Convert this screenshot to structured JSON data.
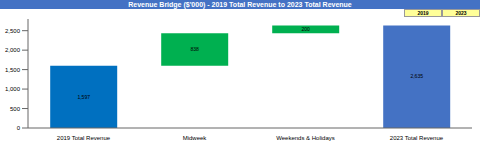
{
  "chart_data": {
    "type": "waterfall",
    "title": "Revenue Bridge ($'000) - 2019 Total Revenue to 2023 Total Revenue",
    "annotations": [
      "2019",
      "2023"
    ],
    "categories": [
      "2019 Total Revenue",
      "Midweek",
      "Weekends & Holidays",
      "2023 Total Revenue"
    ],
    "values": [
      1597,
      838,
      200,
      2635
    ],
    "value_labels": [
      "1,597",
      "838",
      "200",
      "2,635"
    ],
    "colors": [
      "#0070c0",
      "#00b050",
      "#00b050",
      "#4472c4"
    ],
    "ylim": [
      0,
      2800
    ],
    "yticks": [
      0,
      {
        "value": 500,
        "label": "500"
      },
      {
        "value": 1000,
        "label": "1,000"
      },
      {
        "value": 1500,
        "label": "1,500"
      },
      {
        "value": 2000,
        "label": "2,000"
      },
      {
        "value": 2500,
        "label": "2,500"
      }
    ],
    "grid": false,
    "data_labels": true
  }
}
